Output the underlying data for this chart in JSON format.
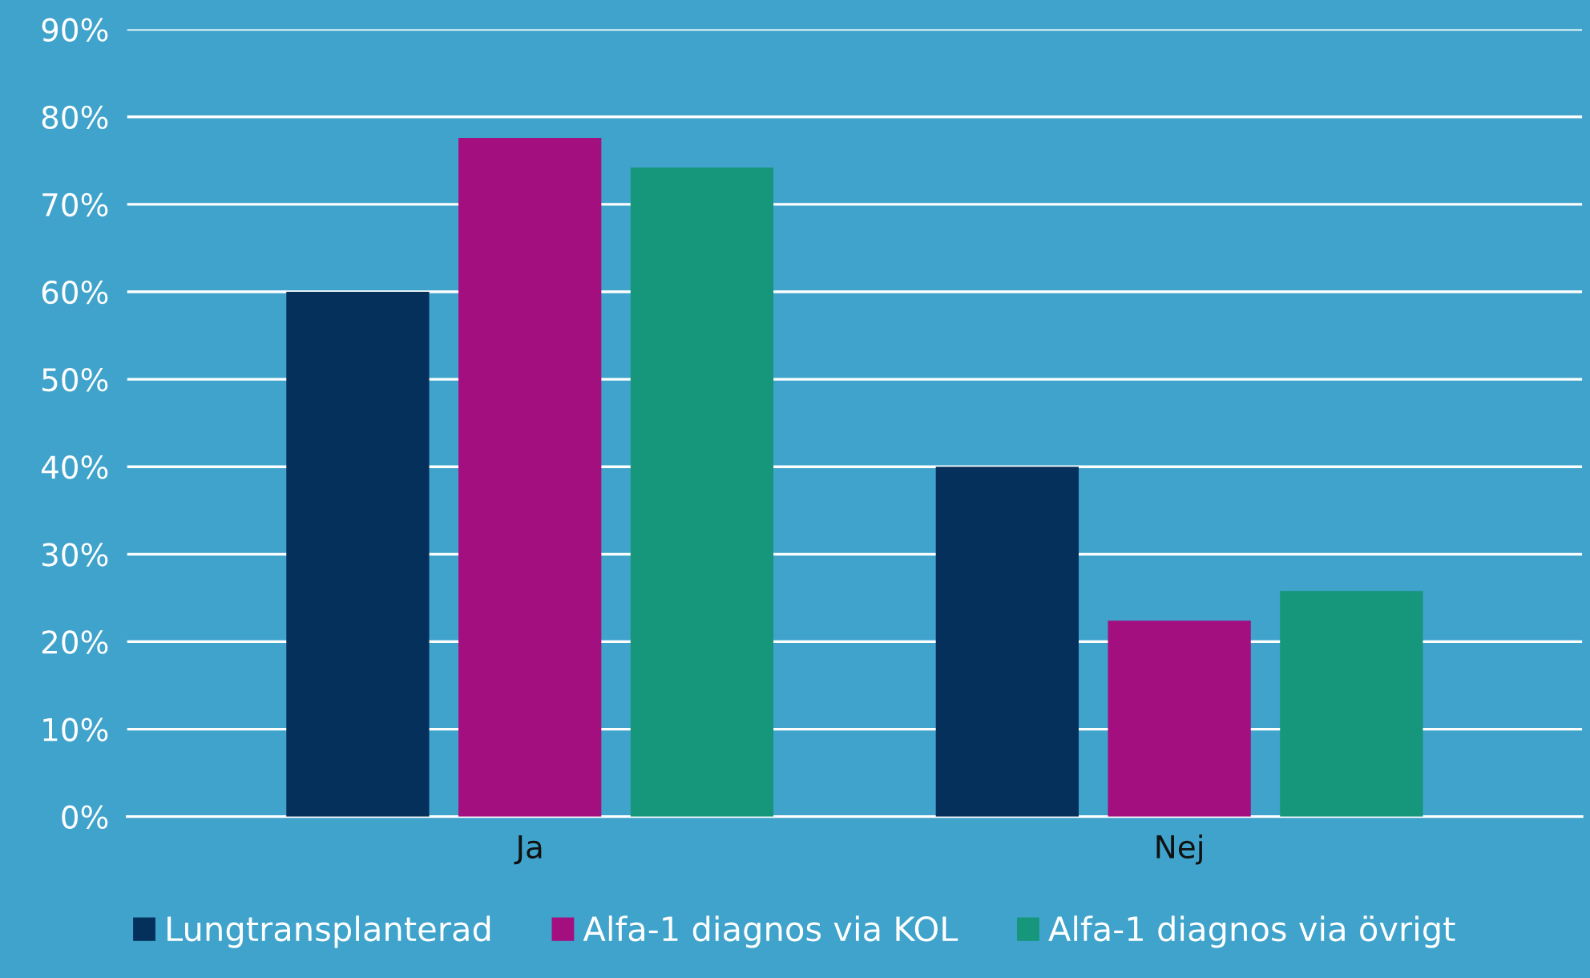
{
  "chart_data": {
    "type": "bar",
    "categories": [
      "Ja",
      "Nej"
    ],
    "series": [
      {
        "name": "Lungtransplanterad",
        "color": "#06305c",
        "values": [
          60,
          40
        ]
      },
      {
        "name": "Alfa-1 diagnos via KOL",
        "color": "#a40f80",
        "values": [
          77.6,
          22.4
        ]
      },
      {
        "name": "Alfa-1 diagnos via övrigt",
        "color": "#16967a",
        "values": [
          74.2,
          25.8
        ]
      }
    ],
    "ylim": [
      0,
      90
    ],
    "yticks": [
      {
        "value": 0,
        "label": "0%"
      },
      {
        "value": 10,
        "label": "10%"
      },
      {
        "value": 20,
        "label": "20%"
      },
      {
        "value": 30,
        "label": "30%"
      },
      {
        "value": 40,
        "label": "40%"
      },
      {
        "value": 50,
        "label": "50%"
      },
      {
        "value": 60,
        "label": "60%"
      },
      {
        "value": 70,
        "label": "70%"
      },
      {
        "value": 80,
        "label": "80%"
      },
      {
        "value": 90,
        "label": "90%"
      }
    ],
    "grid": "y",
    "legend": "bottom"
  }
}
